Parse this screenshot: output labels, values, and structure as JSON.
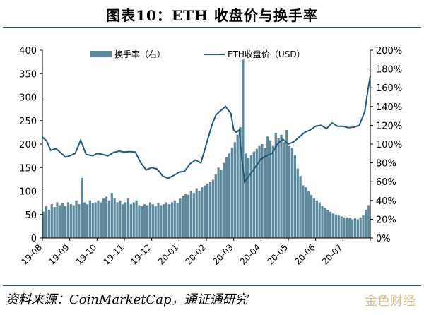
{
  "title": "图表10：ETH 收盘价与换手率",
  "source": "资料来源：CoinMarketCap，通证通研究",
  "watermark": "金色财经",
  "colors": {
    "bar": "#5b8a9c",
    "line": "#1f5a7a",
    "axis": "#000000"
  },
  "chart_data": {
    "type": "bar+line",
    "legend": {
      "placement": "top",
      "bar_label": "换手率（右）",
      "line_label": "ETH收盘价（USD）"
    },
    "x_ticks": [
      "19-08",
      "19-09",
      "19-10",
      "19-11",
      "19-12",
      "20-01",
      "20-02",
      "20-03",
      "20-04",
      "20-05",
      "20-06",
      "20-07"
    ],
    "y_left": {
      "min": 0,
      "max": 400,
      "ticks": [
        0,
        50,
        100,
        150,
        200,
        250,
        300,
        350,
        400
      ]
    },
    "y_right": {
      "min": 0,
      "max": 200,
      "unit": "%",
      "ticks": [
        "0%",
        "20%",
        "40%",
        "60%",
        "80%",
        "100%",
        "120%",
        "140%",
        "160%",
        "180%",
        "200%"
      ]
    },
    "series": [
      {
        "name": "ETH收盘价（USD）",
        "axis": "left",
        "month_index": [
          0,
          0.15,
          0.3,
          0.5,
          0.7,
          0.85,
          1.0,
          1.2,
          1.4,
          1.6,
          1.85,
          2.0,
          2.2,
          2.4,
          2.6,
          2.8,
          3.0,
          3.2,
          3.4,
          3.6,
          3.8,
          4.0,
          4.2,
          4.4,
          4.6,
          4.8,
          5.0,
          5.2,
          5.4,
          5.6,
          5.8,
          6.0,
          6.1,
          6.2,
          6.35,
          6.5,
          6.7,
          6.9,
          7.0,
          7.1,
          7.2,
          7.3,
          7.4,
          7.6,
          7.8,
          8.0,
          8.2,
          8.4,
          8.6,
          8.8,
          9.0,
          9.2,
          9.4,
          9.6,
          9.8,
          10.0,
          10.2,
          10.4,
          10.6,
          10.8,
          11.0,
          11.2,
          11.4,
          11.6,
          11.8,
          11.9,
          12.0
        ],
        "values": [
          215,
          207,
          187,
          190,
          180,
          172,
          175,
          180,
          208,
          178,
          175,
          180,
          178,
          175,
          182,
          185,
          183,
          184,
          183,
          160,
          145,
          150,
          147,
          132,
          127,
          133,
          140,
          142,
          158,
          166,
          160,
          200,
          220,
          240,
          262,
          270,
          280,
          265,
          230,
          225,
          230,
          170,
          120,
          135,
          152,
          168,
          175,
          180,
          200,
          210,
          200,
          205,
          215,
          225,
          230,
          238,
          240,
          233,
          245,
          238,
          238,
          235,
          236,
          240,
          270,
          310,
          345
        ]
      },
      {
        "name": "换手率（右）",
        "axis": "right",
        "type": "bar",
        "month_index": [
          0,
          0.1,
          0.2,
          0.3,
          0.4,
          0.5,
          0.6,
          0.7,
          0.8,
          0.9,
          1.0,
          1.1,
          1.2,
          1.3,
          1.4,
          1.5,
          1.6,
          1.7,
          1.8,
          1.9,
          2.0,
          2.1,
          2.2,
          2.3,
          2.4,
          2.5,
          2.6,
          2.7,
          2.8,
          2.9,
          3.0,
          3.1,
          3.2,
          3.3,
          3.4,
          3.5,
          3.6,
          3.7,
          3.8,
          3.9,
          4.0,
          4.1,
          4.2,
          4.3,
          4.4,
          4.5,
          4.6,
          4.7,
          4.8,
          4.9,
          5.0,
          5.1,
          5.2,
          5.3,
          5.4,
          5.5,
          5.6,
          5.7,
          5.8,
          5.9,
          6.0,
          6.1,
          6.2,
          6.3,
          6.4,
          6.5,
          6.6,
          6.7,
          6.8,
          6.9,
          7.0,
          7.1,
          7.2,
          7.3,
          7.4,
          7.5,
          7.6,
          7.7,
          7.8,
          7.9,
          8.0,
          8.1,
          8.2,
          8.3,
          8.4,
          8.5,
          8.6,
          8.7,
          8.8,
          8.9,
          9.0,
          9.1,
          9.2,
          9.3,
          9.4,
          9.5,
          9.6,
          9.7,
          9.8,
          9.9,
          10.0,
          10.1,
          10.2,
          10.3,
          10.4,
          10.5,
          10.6,
          10.7,
          10.8,
          10.9,
          11.0,
          11.1,
          11.2,
          11.3,
          11.4,
          11.5,
          11.6,
          11.7,
          11.8,
          11.9
        ],
        "values": [
          28,
          34,
          30,
          36,
          33,
          38,
          35,
          37,
          34,
          38,
          36,
          35,
          40,
          36,
          64,
          38,
          36,
          40,
          37,
          38,
          40,
          38,
          42,
          44,
          40,
          48,
          42,
          38,
          40,
          36,
          38,
          42,
          36,
          38,
          40,
          35,
          34,
          36,
          35,
          38,
          36,
          34,
          37,
          35,
          36,
          38,
          36,
          38,
          40,
          37,
          42,
          45,
          47,
          46,
          50,
          48,
          53,
          50,
          54,
          56,
          58,
          60,
          62,
          68,
          75,
          73,
          80,
          86,
          90,
          96,
          102,
          110,
          118,
          190,
          90,
          85,
          88,
          92,
          95,
          98,
          100,
          96,
          108,
          104,
          98,
          112,
          106,
          110,
          102,
          115,
          98,
          96,
          88,
          74,
          66,
          56,
          54,
          50,
          46,
          42,
          40,
          38,
          34,
          32,
          30,
          28,
          26,
          25,
          24,
          23,
          22,
          22,
          21,
          20,
          21,
          20,
          22,
          24,
          30,
          35
        ]
      }
    ]
  }
}
